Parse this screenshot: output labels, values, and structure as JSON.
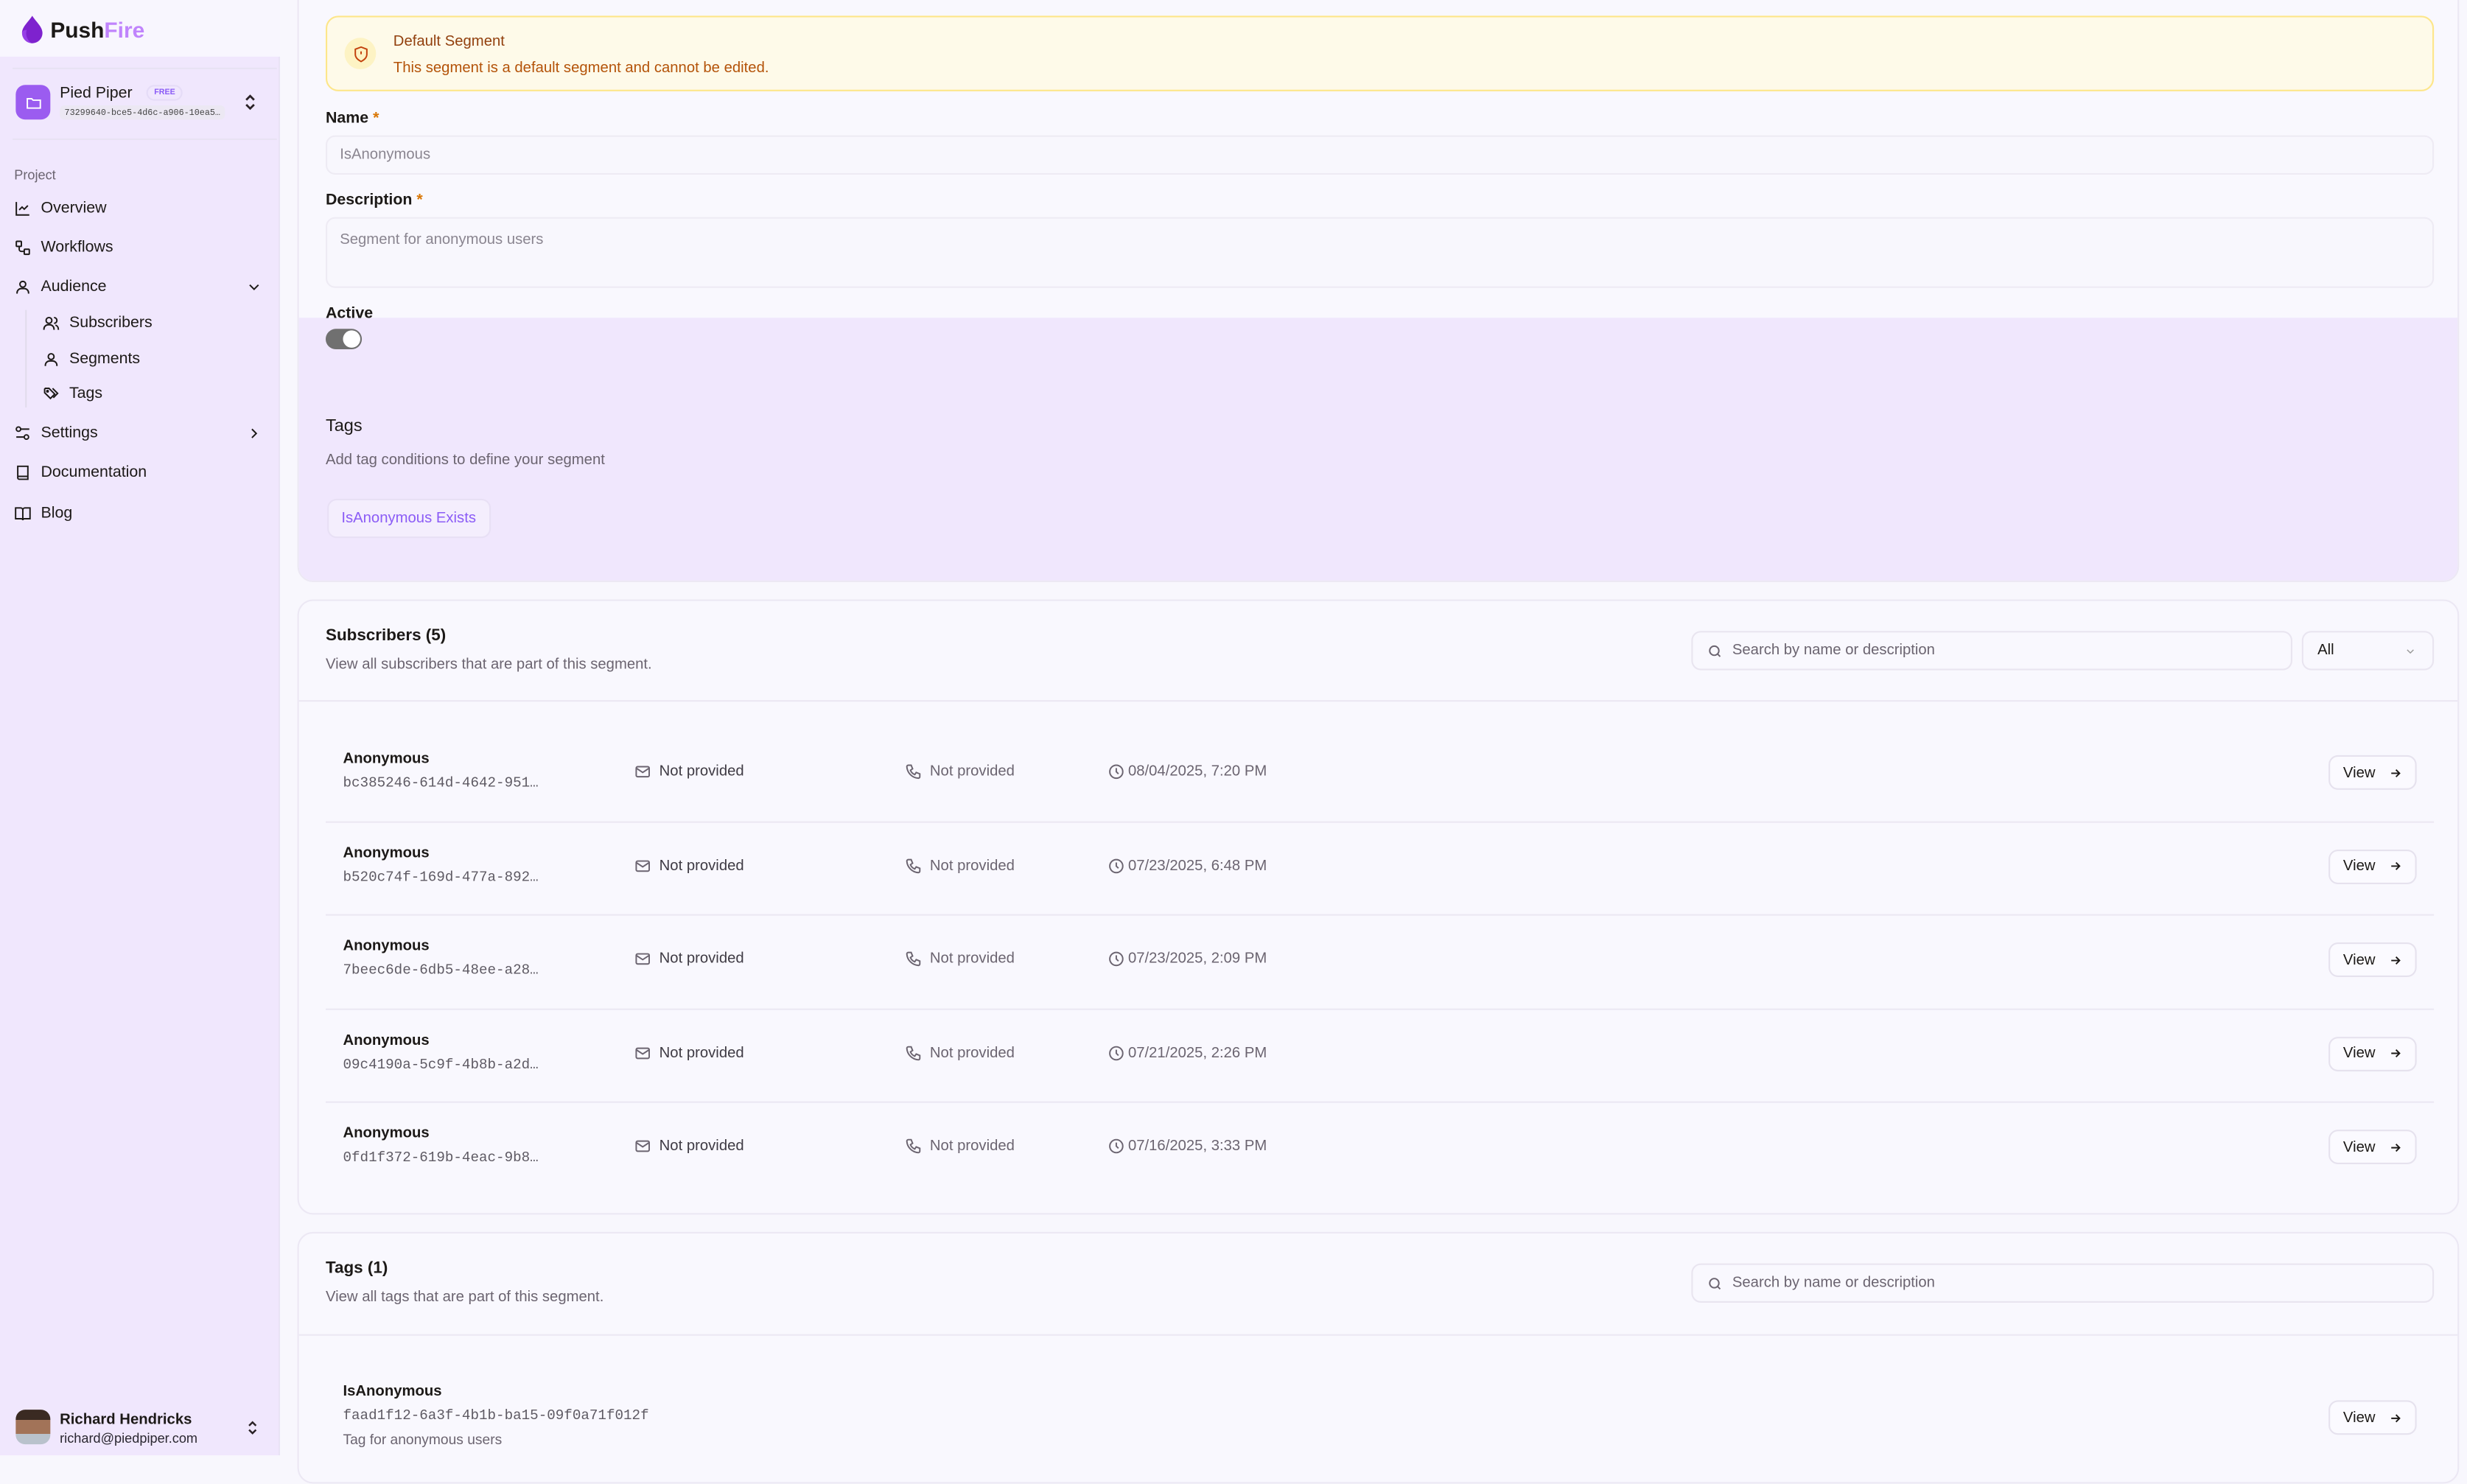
{
  "brand": {
    "name_part1": "Push",
    "name_part2": "Fire",
    "accent": "#8b5cf6"
  },
  "project": {
    "name": "Pied Piper",
    "plan_badge": "FREE",
    "id": "73299640-bce5-4d6c-a906-10ea5…"
  },
  "sidebar": {
    "section_label": "Project",
    "items": [
      {
        "label": "Overview",
        "icon": "chart-line-icon"
      },
      {
        "label": "Workflows",
        "icon": "workflow-icon"
      },
      {
        "label": "Audience",
        "icon": "user-icon",
        "expanded": true
      },
      {
        "label": "Subscribers",
        "icon": "users-icon"
      },
      {
        "label": "Segments",
        "icon": "user-icon"
      },
      {
        "label": "Tags",
        "icon": "tags-icon"
      },
      {
        "label": "Settings",
        "icon": "sliders-icon"
      },
      {
        "label": "Documentation",
        "icon": "book-icon"
      },
      {
        "label": "Blog",
        "icon": "book-open-icon"
      }
    ]
  },
  "user": {
    "name": "Richard Hendricks",
    "email": "richard@piedpiper.com"
  },
  "alert": {
    "title": "Default Segment",
    "message": "This segment is a default segment and cannot be edited."
  },
  "form": {
    "name_label": "Name",
    "required_mark": "*",
    "name_value": "IsAnonymous",
    "description_label": "Description",
    "description_value": "Segment for anonymous users",
    "active_label": "Active",
    "active": true,
    "tags_heading": "Tags",
    "tags_description": "Add tag conditions to define your segment",
    "tag_condition": "IsAnonymous Exists"
  },
  "subscribers": {
    "title": "Subscribers (5)",
    "description": "View all subscribers that are part of this segment.",
    "search_placeholder": "Search by name or description",
    "filter_value": "All",
    "view_label": "View",
    "rows": [
      {
        "name": "Anonymous",
        "id": "bc385246-614d-4642-951…",
        "email": "Not provided",
        "phone": "Not provided",
        "date": "08/04/2025, 7:20 PM"
      },
      {
        "name": "Anonymous",
        "id": "b520c74f-169d-477a-892…",
        "email": "Not provided",
        "phone": "Not provided",
        "date": "07/23/2025, 6:48 PM"
      },
      {
        "name": "Anonymous",
        "id": "7beec6de-6db5-48ee-a28…",
        "email": "Not provided",
        "phone": "Not provided",
        "date": "07/23/2025, 2:09 PM"
      },
      {
        "name": "Anonymous",
        "id": "09c4190a-5c9f-4b8b-a2d…",
        "email": "Not provided",
        "phone": "Not provided",
        "date": "07/21/2025, 2:26 PM"
      },
      {
        "name": "Anonymous",
        "id": "0fd1f372-619b-4eac-9b8…",
        "email": "Not provided",
        "phone": "Not provided",
        "date": "07/16/2025, 3:33 PM"
      }
    ]
  },
  "tags": {
    "title": "Tags (1)",
    "description": "View all tags that are part of this segment.",
    "search_placeholder": "Search by name or description",
    "view_label": "View",
    "rows": [
      {
        "name": "IsAnonymous",
        "id": "faad1f12-6a3f-4b1b-ba15-09f0a71f012f",
        "description": "Tag for anonymous users"
      }
    ]
  }
}
